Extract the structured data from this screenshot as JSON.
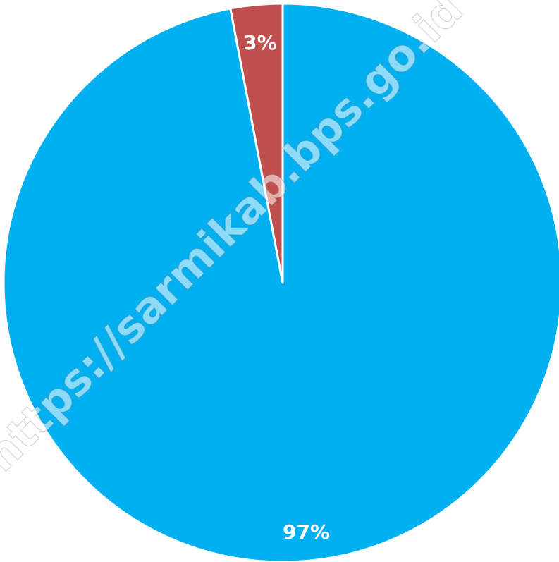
{
  "chart_data": {
    "type": "pie",
    "title": "",
    "slices": [
      {
        "value": 97,
        "label": "97%",
        "color": "#00B0F0"
      },
      {
        "value": 3,
        "label": "3%",
        "color": "#C0504D"
      }
    ],
    "start": "12 o'clock",
    "direction": "clockwise",
    "legend": "none"
  },
  "watermark": {
    "text": "https://sarmikab.bps.go.id"
  }
}
